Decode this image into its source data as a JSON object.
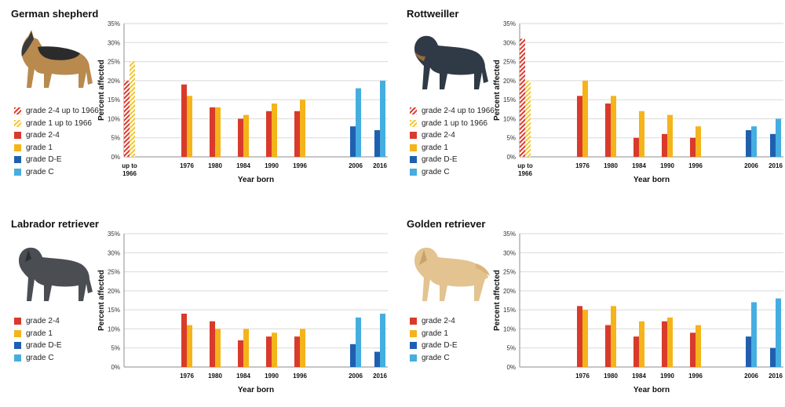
{
  "colors": {
    "grade_2_4": "#d93a2b",
    "grade_1": "#f4b41a",
    "grade_D_E": "#1f5fb0",
    "grade_C": "#45aee0",
    "hatch_red": "#d93a2b",
    "hatch_yellow": "#f4c430",
    "grid": "#d9d9d9",
    "axis": "#8c8c8c"
  },
  "chart_data": [
    {
      "type": "bar",
      "title": "German shepherd",
      "icon": "german-shepherd-illustration",
      "ylabel": "Percent affected",
      "xlabel": "Year born",
      "ylim": [
        0,
        35
      ],
      "yticks": [
        "0%",
        "5%",
        "10%",
        "15%",
        "20%",
        "25%",
        "30%",
        "35%"
      ],
      "legend": [
        {
          "label": "grade 2-4 up to 1966",
          "key": "hatch_red"
        },
        {
          "label": "grade 1 up to 1966",
          "key": "hatch_yellow"
        },
        {
          "label": "grade 2-4",
          "key": "grade_2_4"
        },
        {
          "label": "grade 1",
          "key": "grade_1"
        },
        {
          "label": "grade D-E",
          "key": "grade_D_E"
        },
        {
          "label": "grade C",
          "key": "grade_C"
        }
      ],
      "groups": [
        {
          "label": "up to",
          "label2": "1966",
          "bars": [
            {
              "key": "hatch_red",
              "value": 20
            },
            {
              "key": "hatch_yellow",
              "value": 25
            }
          ]
        },
        {
          "label": "1976",
          "bars": [
            {
              "key": "grade_2_4",
              "value": 19
            },
            {
              "key": "grade_1",
              "value": 16
            }
          ]
        },
        {
          "label": "1980",
          "bars": [
            {
              "key": "grade_2_4",
              "value": 13
            },
            {
              "key": "grade_1",
              "value": 13
            }
          ]
        },
        {
          "label": "1984",
          "bars": [
            {
              "key": "grade_2_4",
              "value": 10
            },
            {
              "key": "grade_1",
              "value": 11
            }
          ]
        },
        {
          "label": "1990",
          "bars": [
            {
              "key": "grade_2_4",
              "value": 12
            },
            {
              "key": "grade_1",
              "value": 14
            }
          ]
        },
        {
          "label": "1996",
          "bars": [
            {
              "key": "grade_2_4",
              "value": 12
            },
            {
              "key": "grade_1",
              "value": 15
            }
          ]
        },
        {
          "label": "2006",
          "bars": [
            {
              "key": "grade_D_E",
              "value": 8
            },
            {
              "key": "grade_C",
              "value": 18
            }
          ]
        },
        {
          "label": "2016",
          "bars": [
            {
              "key": "grade_D_E",
              "value": 7
            },
            {
              "key": "grade_C",
              "value": 20
            }
          ]
        }
      ]
    },
    {
      "type": "bar",
      "title": "Rottweiller",
      "icon": "rottweiler-illustration",
      "ylabel": "Percent affected",
      "xlabel": "Year born",
      "ylim": [
        0,
        35
      ],
      "yticks": [
        "0%",
        "5%",
        "10%",
        "15%",
        "20%",
        "25%",
        "30%",
        "35%"
      ],
      "legend": [
        {
          "label": "grade 2-4 up to 1966",
          "key": "hatch_red"
        },
        {
          "label": "grade 1 up to 1966",
          "key": "hatch_yellow"
        },
        {
          "label": "grade 2-4",
          "key": "grade_2_4"
        },
        {
          "label": "grade 1",
          "key": "grade_1"
        },
        {
          "label": "grade D-E",
          "key": "grade_D_E"
        },
        {
          "label": "grade C",
          "key": "grade_C"
        }
      ],
      "groups": [
        {
          "label": "up to",
          "label2": "1966",
          "bars": [
            {
              "key": "hatch_red",
              "value": 31
            },
            {
              "key": "hatch_yellow",
              "value": 20
            }
          ]
        },
        {
          "label": "1976",
          "bars": [
            {
              "key": "grade_2_4",
              "value": 16
            },
            {
              "key": "grade_1",
              "value": 20
            }
          ]
        },
        {
          "label": "1980",
          "bars": [
            {
              "key": "grade_2_4",
              "value": 14
            },
            {
              "key": "grade_1",
              "value": 16
            }
          ]
        },
        {
          "label": "1984",
          "bars": [
            {
              "key": "grade_2_4",
              "value": 5
            },
            {
              "key": "grade_1",
              "value": 12
            }
          ]
        },
        {
          "label": "1990",
          "bars": [
            {
              "key": "grade_2_4",
              "value": 6
            },
            {
              "key": "grade_1",
              "value": 11
            }
          ]
        },
        {
          "label": "1996",
          "bars": [
            {
              "key": "grade_2_4",
              "value": 5
            },
            {
              "key": "grade_1",
              "value": 8
            }
          ]
        },
        {
          "label": "2006",
          "bars": [
            {
              "key": "grade_D_E",
              "value": 7
            },
            {
              "key": "grade_C",
              "value": 8
            }
          ]
        },
        {
          "label": "2016",
          "bars": [
            {
              "key": "grade_D_E",
              "value": 6
            },
            {
              "key": "grade_C",
              "value": 10
            }
          ]
        }
      ]
    },
    {
      "type": "bar",
      "title": "Labrador retriever",
      "icon": "labrador-illustration",
      "ylabel": "Percent affected",
      "xlabel": "Year born",
      "ylim": [
        0,
        35
      ],
      "yticks": [
        "0%",
        "5%",
        "10%",
        "15%",
        "20%",
        "25%",
        "30%",
        "35%"
      ],
      "legend": [
        {
          "label": "grade 2-4",
          "key": "grade_2_4"
        },
        {
          "label": "grade 1",
          "key": "grade_1"
        },
        {
          "label": "grade D-E",
          "key": "grade_D_E"
        },
        {
          "label": "grade C",
          "key": "grade_C"
        }
      ],
      "groups": [
        {
          "label": "",
          "bars": []
        },
        {
          "label": "1976",
          "bars": [
            {
              "key": "grade_2_4",
              "value": 14
            },
            {
              "key": "grade_1",
              "value": 11
            }
          ]
        },
        {
          "label": "1980",
          "bars": [
            {
              "key": "grade_2_4",
              "value": 12
            },
            {
              "key": "grade_1",
              "value": 10
            }
          ]
        },
        {
          "label": "1984",
          "bars": [
            {
              "key": "grade_2_4",
              "value": 7
            },
            {
              "key": "grade_1",
              "value": 10
            }
          ]
        },
        {
          "label": "1990",
          "bars": [
            {
              "key": "grade_2_4",
              "value": 8
            },
            {
              "key": "grade_1",
              "value": 9
            }
          ]
        },
        {
          "label": "1996",
          "bars": [
            {
              "key": "grade_2_4",
              "value": 8
            },
            {
              "key": "grade_1",
              "value": 10
            }
          ]
        },
        {
          "label": "2006",
          "bars": [
            {
              "key": "grade_D_E",
              "value": 6
            },
            {
              "key": "grade_C",
              "value": 13
            }
          ]
        },
        {
          "label": "2016",
          "bars": [
            {
              "key": "grade_D_E",
              "value": 4
            },
            {
              "key": "grade_C",
              "value": 14
            }
          ]
        }
      ]
    },
    {
      "type": "bar",
      "title": "Golden retriever",
      "icon": "golden-retriever-illustration",
      "ylabel": "Percent affected",
      "xlabel": "Year born",
      "ylim": [
        0,
        35
      ],
      "yticks": [
        "0%",
        "5%",
        "10%",
        "15%",
        "20%",
        "25%",
        "30%",
        "35%"
      ],
      "legend": [
        {
          "label": "grade 2-4",
          "key": "grade_2_4"
        },
        {
          "label": "grade 1",
          "key": "grade_1"
        },
        {
          "label": "grade D-E",
          "key": "grade_D_E"
        },
        {
          "label": "grade C",
          "key": "grade_C"
        }
      ],
      "groups": [
        {
          "label": "",
          "bars": []
        },
        {
          "label": "1976",
          "bars": [
            {
              "key": "grade_2_4",
              "value": 16
            },
            {
              "key": "grade_1",
              "value": 15
            }
          ]
        },
        {
          "label": "1980",
          "bars": [
            {
              "key": "grade_2_4",
              "value": 11
            },
            {
              "key": "grade_1",
              "value": 16
            }
          ]
        },
        {
          "label": "1984",
          "bars": [
            {
              "key": "grade_2_4",
              "value": 8
            },
            {
              "key": "grade_1",
              "value": 12
            }
          ]
        },
        {
          "label": "1990",
          "bars": [
            {
              "key": "grade_2_4",
              "value": 12
            },
            {
              "key": "grade_1",
              "value": 13
            }
          ]
        },
        {
          "label": "1996",
          "bars": [
            {
              "key": "grade_2_4",
              "value": 9
            },
            {
              "key": "grade_1",
              "value": 11
            }
          ]
        },
        {
          "label": "2006",
          "bars": [
            {
              "key": "grade_D_E",
              "value": 8
            },
            {
              "key": "grade_C",
              "value": 17
            }
          ]
        },
        {
          "label": "2016",
          "bars": [
            {
              "key": "grade_D_E",
              "value": 5
            },
            {
              "key": "grade_C",
              "value": 18
            }
          ]
        }
      ]
    }
  ]
}
